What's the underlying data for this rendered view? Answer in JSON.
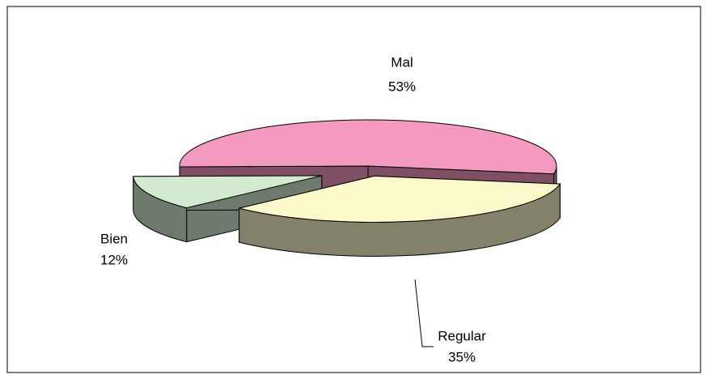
{
  "chart_data": {
    "type": "pie3d",
    "categories": [
      "Mal",
      "Regular",
      "Bien"
    ],
    "values": [
      53,
      35,
      12
    ],
    "value_labels": [
      "53%",
      "35%",
      "12%"
    ],
    "colors": [
      "#f49ac1",
      "#fbf9c9",
      "#d2ebd0"
    ]
  }
}
